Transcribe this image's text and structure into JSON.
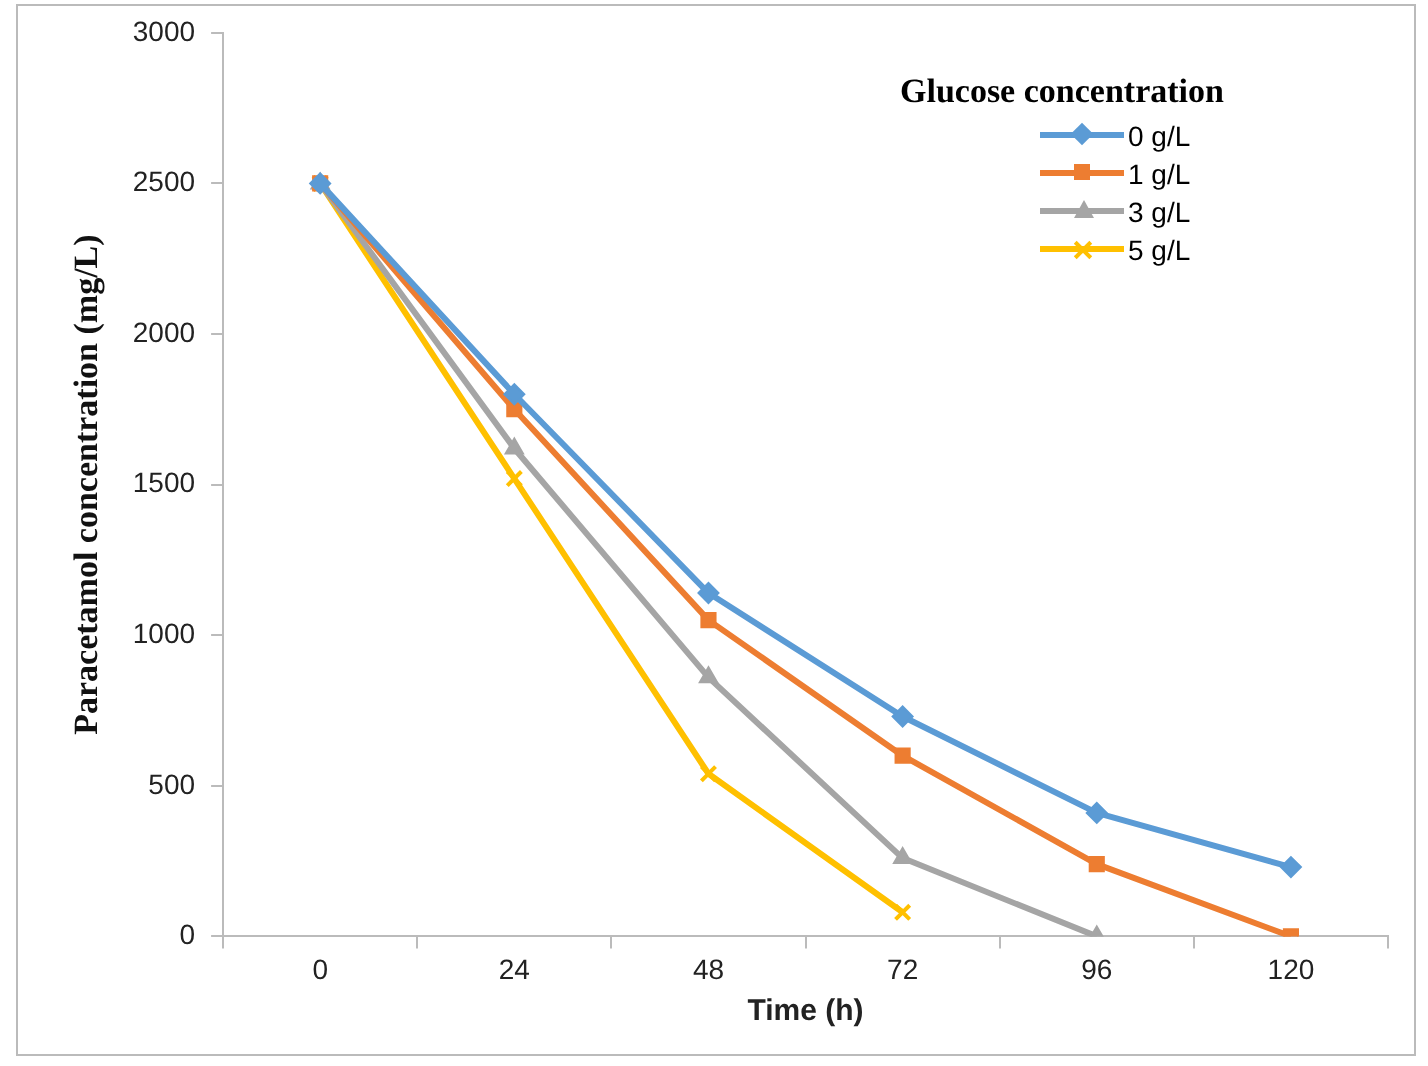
{
  "chart_data": {
    "type": "line",
    "xlabel": "Time (h)",
    "ylabel": "Paracetamol concentration (mg/L)",
    "legend_title": "Glucose concentration",
    "legend": "top right",
    "grid": false,
    "categories": [
      "0",
      "24",
      "48",
      "72",
      "96",
      "120"
    ],
    "ylim": [
      0,
      3000
    ],
    "yticks": [
      0,
      500,
      1000,
      1500,
      2000,
      2500,
      3000
    ],
    "series": [
      {
        "name": "0 g/L",
        "color": "#5b9bd5",
        "marker": "diamond",
        "values": [
          2500,
          1800,
          1140,
          730,
          410,
          230
        ]
      },
      {
        "name": "1 g/L",
        "color": "#ed7d31",
        "marker": "square",
        "values": [
          2500,
          1750,
          1050,
          600,
          240,
          0
        ]
      },
      {
        "name": "3 g/L",
        "color": "#a5a5a5",
        "marker": "triangle",
        "values": [
          2500,
          1620,
          860,
          260,
          0,
          null
        ]
      },
      {
        "name": "5 g/L",
        "color": "#ffc000",
        "marker": "cross",
        "values": [
          2500,
          1520,
          540,
          80,
          null,
          null
        ]
      }
    ]
  }
}
